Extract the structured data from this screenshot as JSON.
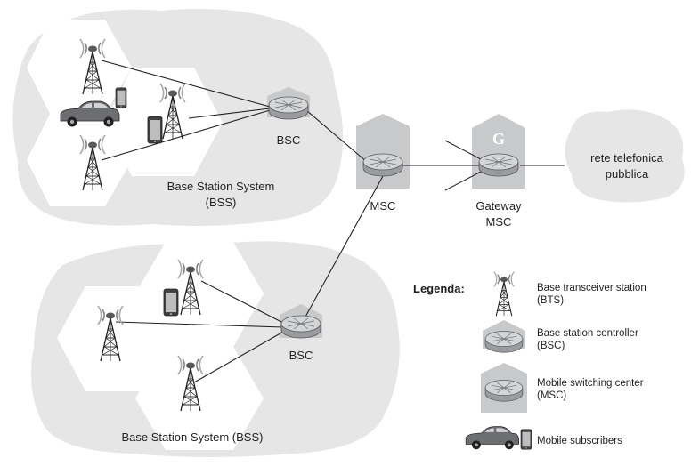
{
  "diagram": {
    "labels": {
      "bsc_top": "BSC",
      "bss_top_line1": "Base Station System",
      "bss_top_line2": "(BSS)",
      "msc": "MSC",
      "gateway_line1": "Gateway",
      "gateway_line2": "MSC",
      "gateway_mark": "G",
      "pstn_line1": "rete telefonica",
      "pstn_line2": "pubblica",
      "bsc_bottom": "BSC",
      "bss_bottom": "Base Station System (BSS)"
    },
    "legend": {
      "title": "Legenda:",
      "bts_line1": "Base transceiver station",
      "bts_line2": "(BTS)",
      "bsc_line1": "Base station controller",
      "bsc_line2": "(BSC)",
      "msc_line1": "Mobile switching center",
      "msc_line2": "(MSC)",
      "subscribers": "Mobile subscribers"
    },
    "colors": {
      "cloud": "#e6e6e7",
      "hexagon": "#ffffff",
      "building": "#c8c9cb",
      "router_top": "#d4d5d7",
      "router_side": "#9b9c9f",
      "line": "#231f20"
    }
  }
}
